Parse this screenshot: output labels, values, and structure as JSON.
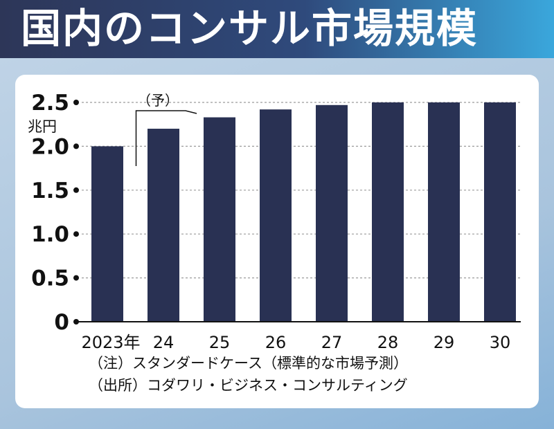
{
  "header": {
    "title": "国内のコンサル市場規模"
  },
  "notes": {
    "note": "（注）スタンダードケース（標準的な市場予測）",
    "source": "（出所）コダワリ・ビジネス・コンサルティング"
  },
  "colors": {
    "bar": "#293153",
    "header_dark": "#2d3658",
    "header_light": "#3aa7dc"
  },
  "chart_data": {
    "type": "bar",
    "categories": [
      "2023年",
      "24",
      "25",
      "26",
      "27",
      "28",
      "29",
      "30"
    ],
    "values": [
      2.0,
      2.2,
      2.33,
      2.42,
      2.47,
      2.5,
      2.5,
      2.5
    ],
    "title": "国内のコンサル市場規模",
    "ylabel": "兆円",
    "xlabel": "",
    "ylim": [
      0,
      2.5
    ],
    "yticks": [
      0,
      0.5,
      1.0,
      1.5,
      2.0,
      2.5
    ],
    "ytick_labels": [
      "0",
      "0.5",
      "1.0",
      "1.5",
      "2.0",
      "2.5"
    ],
    "forecast_label": "（予）",
    "forecast_start_index": 1,
    "grid": true
  }
}
